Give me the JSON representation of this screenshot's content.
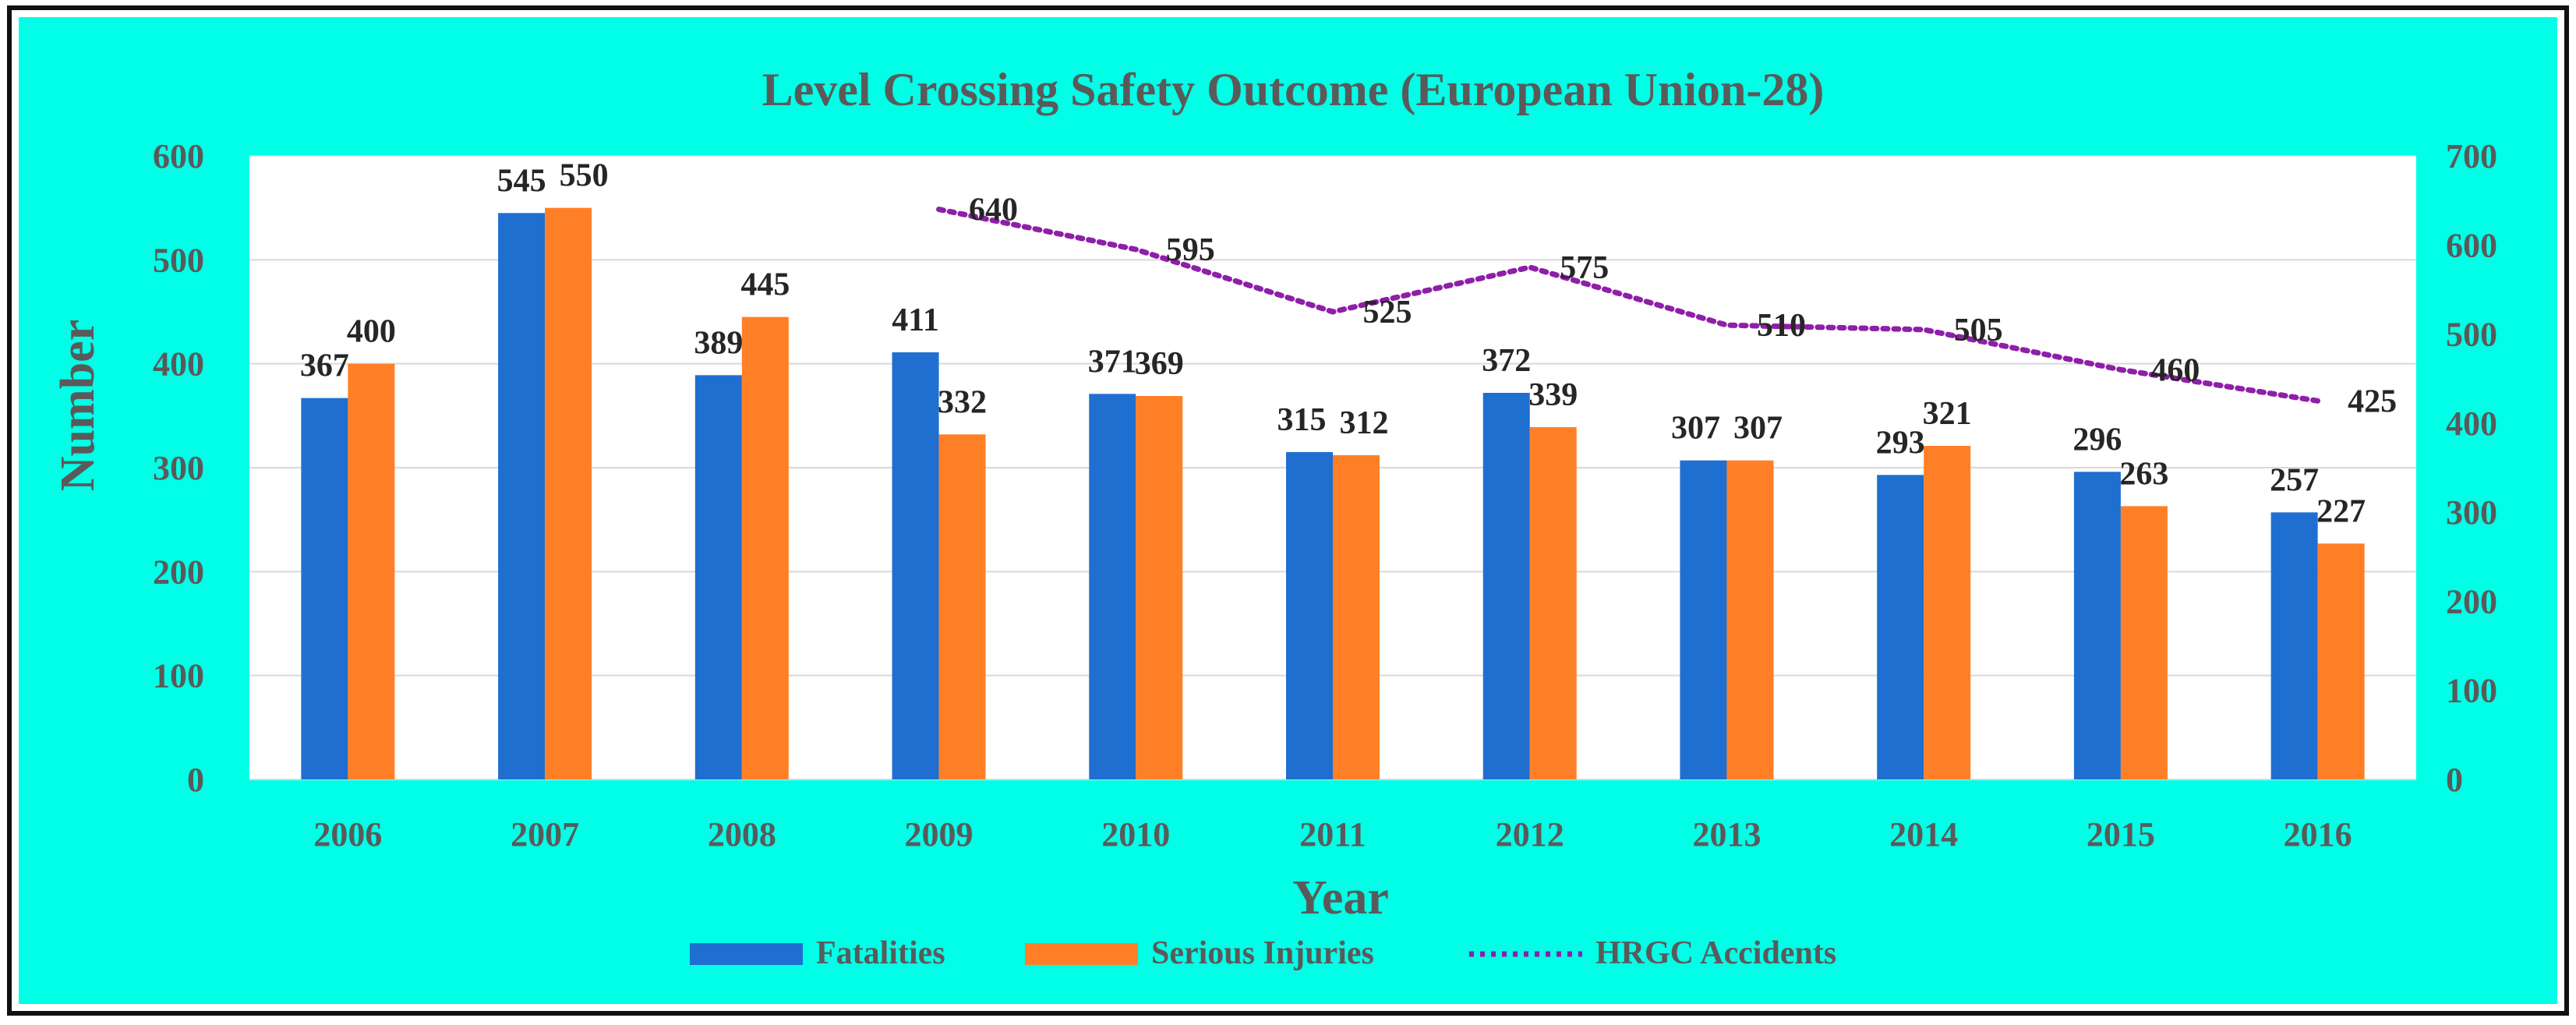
{
  "colors": {
    "background": "#00ffe6",
    "frame": "#111111",
    "plot_background": "#ffffff",
    "gridline": "#d9d9d9",
    "axis_text": "#5a5a5a",
    "label_text": "#262626",
    "fatalities": "#1f6fd1",
    "serious_injuries": "#ff7f27",
    "hrgc_accidents": "#8e1fa8"
  },
  "chart_data": {
    "type": "bar",
    "title": "Level Crossing Safety Outcome (European Union-28)",
    "xlabel": "Year",
    "ylabel": "Number",
    "categories": [
      "2006",
      "2007",
      "2008",
      "2009",
      "2010",
      "2011",
      "2012",
      "2013",
      "2014",
      "2015",
      "2016"
    ],
    "ylim": [
      0,
      600
    ],
    "yticks": [
      0,
      100,
      200,
      300,
      400,
      500,
      600
    ],
    "y2lim": [
      0,
      700
    ],
    "y2ticks": [
      0,
      100,
      200,
      300,
      400,
      500,
      600,
      700
    ],
    "grid": true,
    "legend_position": "bottom",
    "series": [
      {
        "name": "Fatalities",
        "type": "bar",
        "axis": "left",
        "color": "#1f6fd1",
        "values": [
          367,
          545,
          389,
          411,
          371,
          315,
          372,
          307,
          293,
          296,
          257
        ]
      },
      {
        "name": "Serious Injuries",
        "type": "bar",
        "axis": "left",
        "color": "#ff7f27",
        "values": [
          400,
          550,
          445,
          332,
          369,
          312,
          339,
          307,
          321,
          263,
          227
        ]
      },
      {
        "name": "HRGC Accidents",
        "type": "line",
        "style": "dotted",
        "axis": "right",
        "color": "#8e1fa8",
        "values": [
          null,
          null,
          null,
          640,
          595,
          525,
          575,
          510,
          505,
          460,
          425
        ]
      }
    ]
  }
}
